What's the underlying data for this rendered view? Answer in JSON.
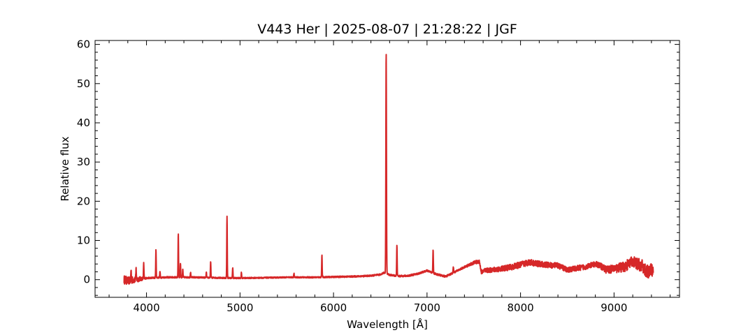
{
  "chart_data": {
    "type": "line",
    "title": "V443 Her | 2025-08-07 | 21:28:22 | JGF",
    "xlabel": "Wavelength [Å]",
    "ylabel": "Relative flux",
    "xlim": [
      3450,
      9700
    ],
    "ylim": [
      -4.5,
      61
    ],
    "xticks": [
      4000,
      5000,
      6000,
      7000,
      8000,
      9000
    ],
    "yticks": [
      0,
      10,
      20,
      30,
      40,
      50,
      60
    ],
    "x_minor_step": 200,
    "y_minor_step": 2,
    "grid": false,
    "line_color": "#d62728",
    "series": [
      {
        "continuum": [
          [
            3760,
            0.0
          ],
          [
            3800,
            -0.3
          ],
          [
            3900,
            0.1
          ],
          [
            4000,
            0.4
          ],
          [
            4200,
            0.6
          ],
          [
            4500,
            0.6
          ],
          [
            4700,
            0.5
          ],
          [
            5000,
            0.4
          ],
          [
            5300,
            0.5
          ],
          [
            5500,
            0.6
          ],
          [
            5800,
            0.6
          ],
          [
            6000,
            0.7
          ],
          [
            6200,
            0.8
          ],
          [
            6400,
            1.0
          ],
          [
            6500,
            1.3
          ],
          [
            6540,
            1.8
          ],
          [
            6600,
            1.2
          ],
          [
            6700,
            0.9
          ],
          [
            6800,
            1.0
          ],
          [
            6900,
            1.5
          ],
          [
            7000,
            2.3
          ],
          [
            7100,
            1.4
          ],
          [
            7200,
            0.8
          ],
          [
            7300,
            2.0
          ],
          [
            7400,
            3.2
          ],
          [
            7500,
            4.3
          ],
          [
            7560,
            4.7
          ],
          [
            7580,
            2.0
          ],
          [
            7620,
            2.3
          ],
          [
            7700,
            2.5
          ],
          [
            7800,
            2.8
          ],
          [
            7900,
            3.2
          ],
          [
            8000,
            3.8
          ],
          [
            8100,
            4.5
          ],
          [
            8150,
            4.2
          ],
          [
            8200,
            4.0
          ],
          [
            8300,
            3.7
          ],
          [
            8400,
            3.6
          ],
          [
            8500,
            2.5
          ],
          [
            8600,
            2.9
          ],
          [
            8700,
            3.3
          ],
          [
            8800,
            4.0
          ],
          [
            8860,
            3.5
          ],
          [
            8920,
            2.5
          ],
          [
            9000,
            2.8
          ],
          [
            9100,
            3.2
          ],
          [
            9200,
            4.5
          ],
          [
            9300,
            3.5
          ],
          [
            9350,
            2.0
          ],
          [
            9420,
            2.5
          ]
        ],
        "noise": [
          [
            3760,
            2.2
          ],
          [
            3900,
            1.5
          ],
          [
            4000,
            0.4
          ],
          [
            5500,
            0.3
          ],
          [
            7400,
            0.5
          ],
          [
            7600,
            1.2
          ],
          [
            8000,
            1.6
          ],
          [
            8500,
            1.4
          ],
          [
            8800,
            1.4
          ],
          [
            9000,
            2.2
          ],
          [
            9200,
            3.0
          ],
          [
            9420,
            3.5
          ]
        ],
        "emission_lines": [
          {
            "x": 6563,
            "peak": 58.0
          },
          {
            "x": 4861,
            "peak": 16.3
          },
          {
            "x": 4340,
            "peak": 11.8
          },
          {
            "x": 6678,
            "peak": 9.0
          },
          {
            "x": 4101,
            "peak": 7.6
          },
          {
            "x": 7065,
            "peak": 7.7
          },
          {
            "x": 5876,
            "peak": 6.2
          },
          {
            "x": 4686,
            "peak": 4.6
          },
          {
            "x": 3970,
            "peak": 4.1
          },
          {
            "x": 4363,
            "peak": 4.3
          },
          {
            "x": 4922,
            "peak": 3.1
          },
          {
            "x": 3889,
            "peak": 2.8
          },
          {
            "x": 3835,
            "peak": 2.6
          },
          {
            "x": 4388,
            "peak": 2.6
          },
          {
            "x": 4471,
            "peak": 1.9
          },
          {
            "x": 4640,
            "peak": 1.8
          },
          {
            "x": 5015,
            "peak": 1.9
          },
          {
            "x": 5577,
            "peak": 1.6
          },
          {
            "x": 4144,
            "peak": 2.1
          },
          {
            "x": 7281,
            "peak": 3.4
          }
        ]
      }
    ]
  }
}
